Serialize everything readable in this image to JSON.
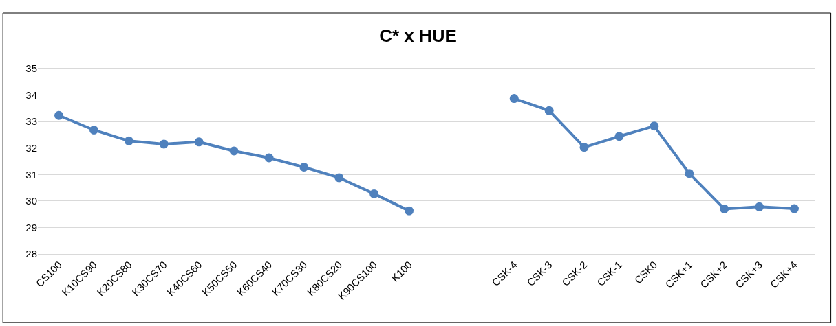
{
  "chart_data": {
    "type": "line",
    "title": "C* x HUE",
    "categories": [
      "CS100",
      "K10CS90",
      "K20CS80",
      "K30CS70",
      "K40CS60",
      "K50CS50",
      "K60CS40",
      "K70CS30",
      "K80CS20",
      "K90CS100",
      "K100",
      null,
      null,
      "CSK-4",
      "CSK-3",
      "CSK-2",
      "CSK-1",
      "CSK0",
      "CSK+1",
      "CSK+2",
      "CSK+3",
      "CSK+4"
    ],
    "series": [
      {
        "color": "#4f81bd",
        "values": [
          33.23,
          32.68,
          32.27,
          32.15,
          32.23,
          31.89,
          31.63,
          31.28,
          30.88,
          30.27,
          29.63,
          null,
          null,
          33.87,
          33.41,
          32.03,
          32.44,
          32.83,
          31.04,
          29.7,
          29.78,
          29.71
        ]
      }
    ],
    "ylim": [
      28,
      35
    ],
    "yticks": [
      28,
      29,
      30,
      31,
      32,
      33,
      34,
      35
    ],
    "grid": "y",
    "marker": "circle",
    "line_style": "solid"
  }
}
